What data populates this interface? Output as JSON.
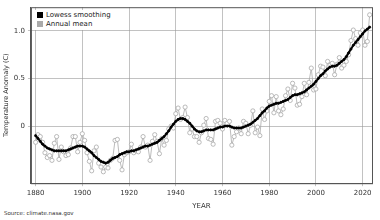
{
  "chart_data": {
    "type": "line",
    "xlabel": "YEAR",
    "ylabel": "Temperature Anomaly (C)",
    "annotations": [
      "Source: climate.nasa.gov"
    ],
    "x": [
      1880,
      1881,
      1882,
      1883,
      1884,
      1885,
      1886,
      1887,
      1888,
      1889,
      1890,
      1891,
      1892,
      1893,
      1894,
      1895,
      1896,
      1897,
      1898,
      1899,
      1900,
      1901,
      1902,
      1903,
      1904,
      1905,
      1906,
      1907,
      1908,
      1909,
      1910,
      1911,
      1912,
      1913,
      1914,
      1915,
      1916,
      1917,
      1918,
      1919,
      1920,
      1921,
      1922,
      1923,
      1924,
      1925,
      1926,
      1927,
      1928,
      1929,
      1930,
      1931,
      1932,
      1933,
      1934,
      1935,
      1936,
      1937,
      1938,
      1939,
      1940,
      1941,
      1942,
      1943,
      1944,
      1945,
      1946,
      1947,
      1948,
      1949,
      1950,
      1951,
      1952,
      1953,
      1954,
      1955,
      1956,
      1957,
      1958,
      1959,
      1960,
      1961,
      1962,
      1963,
      1964,
      1965,
      1966,
      1967,
      1968,
      1969,
      1970,
      1971,
      1972,
      1973,
      1974,
      1975,
      1976,
      1977,
      1978,
      1979,
      1980,
      1981,
      1982,
      1983,
      1984,
      1985,
      1986,
      1987,
      1988,
      1989,
      1990,
      1991,
      1992,
      1993,
      1994,
      1995,
      1996,
      1997,
      1998,
      1999,
      2000,
      2001,
      2002,
      2003,
      2004,
      2005,
      2006,
      2007,
      2008,
      2009,
      2010,
      2011,
      2012,
      2013,
      2014,
      2015,
      2016,
      2017,
      2018,
      2019,
      2020,
      2021,
      2022,
      2023
    ],
    "series": [
      {
        "name": "Lowess smoothing",
        "color": "#000000",
        "marker": "circle",
        "line_style": "solid",
        "values": [
          -0.1,
          -0.13,
          -0.16,
          -0.19,
          -0.21,
          -0.23,
          -0.24,
          -0.25,
          -0.26,
          -0.26,
          -0.26,
          -0.26,
          -0.26,
          -0.26,
          -0.25,
          -0.24,
          -0.23,
          -0.22,
          -0.21,
          -0.21,
          -0.21,
          -0.22,
          -0.24,
          -0.26,
          -0.28,
          -0.31,
          -0.33,
          -0.35,
          -0.37,
          -0.38,
          -0.39,
          -0.38,
          -0.36,
          -0.34,
          -0.33,
          -0.32,
          -0.3,
          -0.29,
          -0.28,
          -0.27,
          -0.27,
          -0.26,
          -0.26,
          -0.25,
          -0.24,
          -0.23,
          -0.22,
          -0.21,
          -0.21,
          -0.2,
          -0.19,
          -0.18,
          -0.17,
          -0.15,
          -0.13,
          -0.11,
          -0.08,
          -0.05,
          -0.01,
          0.02,
          0.05,
          0.07,
          0.08,
          0.08,
          0.07,
          0.05,
          0.03,
          0.0,
          -0.03,
          -0.05,
          -0.06,
          -0.06,
          -0.05,
          -0.04,
          -0.04,
          -0.04,
          -0.04,
          -0.03,
          -0.02,
          -0.01,
          -0.01,
          0.0,
          0.0,
          0.0,
          -0.01,
          -0.02,
          -0.02,
          -0.02,
          -0.02,
          -0.01,
          0.0,
          0.01,
          0.02,
          0.04,
          0.06,
          0.08,
          0.11,
          0.14,
          0.16,
          0.19,
          0.21,
          0.22,
          0.23,
          0.24,
          0.24,
          0.25,
          0.26,
          0.27,
          0.28,
          0.3,
          0.32,
          0.33,
          0.33,
          0.34,
          0.35,
          0.36,
          0.38,
          0.4,
          0.42,
          0.44,
          0.47,
          0.5,
          0.53,
          0.55,
          0.58,
          0.6,
          0.62,
          0.63,
          0.63,
          0.64,
          0.66,
          0.68,
          0.7,
          0.73,
          0.77,
          0.81,
          0.85,
          0.88,
          0.91,
          0.94,
          0.97,
          1.0,
          1.02,
          1.04
        ]
      },
      {
        "name": "Annual mean",
        "color": "#aaaaaa",
        "marker": "circle",
        "line_style": "solid",
        "values": [
          -0.17,
          -0.09,
          -0.11,
          -0.17,
          -0.28,
          -0.33,
          -0.31,
          -0.36,
          -0.18,
          -0.11,
          -0.35,
          -0.22,
          -0.27,
          -0.31,
          -0.3,
          -0.23,
          -0.11,
          -0.11,
          -0.27,
          -0.17,
          -0.08,
          -0.15,
          -0.28,
          -0.37,
          -0.47,
          -0.26,
          -0.22,
          -0.39,
          -0.43,
          -0.48,
          -0.43,
          -0.44,
          -0.36,
          -0.34,
          -0.15,
          -0.14,
          -0.36,
          -0.46,
          -0.3,
          -0.28,
          -0.27,
          -0.19,
          -0.28,
          -0.26,
          -0.27,
          -0.22,
          -0.11,
          -0.22,
          -0.2,
          -0.36,
          -0.16,
          -0.09,
          -0.16,
          -0.29,
          -0.13,
          -0.2,
          -0.15,
          -0.03,
          0.0,
          -0.02,
          0.13,
          0.19,
          0.07,
          0.09,
          0.2,
          0.09,
          -0.07,
          -0.03,
          -0.11,
          -0.11,
          -0.17,
          -0.07,
          0.01,
          0.08,
          -0.13,
          -0.14,
          -0.19,
          0.05,
          0.06,
          0.03,
          -0.03,
          0.06,
          0.03,
          0.05,
          -0.2,
          -0.11,
          -0.06,
          -0.02,
          -0.08,
          0.05,
          0.03,
          -0.08,
          0.01,
          0.16,
          -0.07,
          -0.01,
          -0.1,
          0.18,
          0.07,
          0.16,
          0.26,
          0.32,
          0.14,
          0.31,
          0.16,
          0.12,
          0.18,
          0.32,
          0.39,
          0.27,
          0.45,
          0.4,
          0.22,
          0.23,
          0.31,
          0.45,
          0.33,
          0.46,
          0.61,
          0.38,
          0.39,
          0.54,
          0.63,
          0.62,
          0.53,
          0.68,
          0.64,
          0.66,
          0.54,
          0.65,
          0.72,
          0.61,
          0.64,
          0.68,
          0.75,
          0.9,
          1.01,
          0.92,
          0.85,
          0.98,
          1.01,
          0.85,
          0.89,
          1.17
        ]
      }
    ],
    "xlim": [
      1878,
      2024
    ],
    "xticks": [
      1880,
      1900,
      1920,
      1940,
      1960,
      1980,
      2000,
      2020
    ],
    "ylim": [
      -0.6,
      1.25
    ],
    "yticks": [
      0,
      0.5,
      {
        "value": 1,
        "label": "1.0"
      }
    ],
    "grid": true,
    "legend": "upper left"
  }
}
